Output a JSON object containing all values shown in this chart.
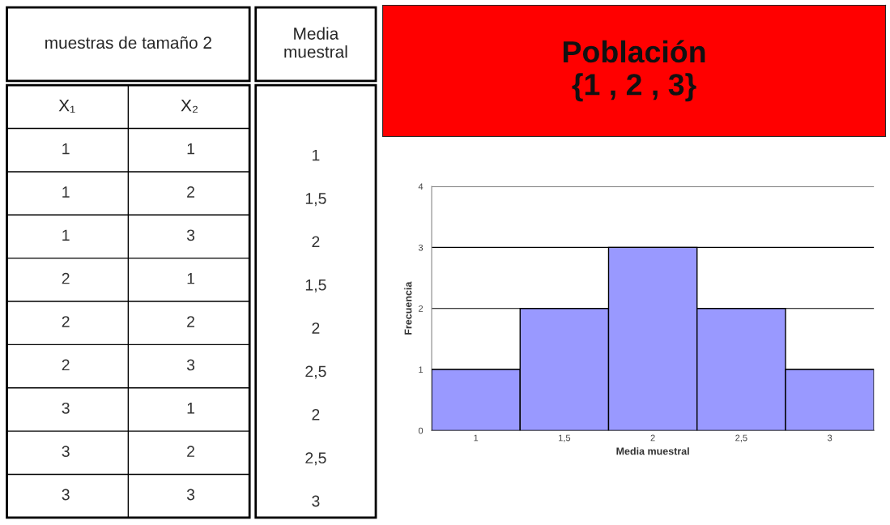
{
  "chart_data": [
    {
      "type": "other",
      "annotations": [
        "muestras de tamaño 2",
        "Media muestral"
      ],
      "categories": [
        "X₁",
        "X₂",
        null
      ],
      "cell_labels": [
        [
          "1",
          "1",
          "1"
        ],
        [
          "1",
          "2",
          "1,5"
        ],
        [
          "1",
          "3",
          "2"
        ],
        [
          "2",
          "1",
          "1,5"
        ],
        [
          "2",
          "2",
          "2"
        ],
        [
          "2",
          "3",
          "2,5"
        ],
        [
          "3",
          "1",
          "2"
        ],
        [
          "3",
          "2",
          "2,5"
        ],
        [
          "3",
          "3",
          "3"
        ]
      ]
    },
    {
      "type": "bar",
      "title": "Población\n{1 , 2 , 3}",
      "xlabel": "Media muestral",
      "ylabel": "Frecuencia",
      "categories": [
        "1",
        "1,5",
        "2",
        "2,5",
        "3"
      ],
      "values": [
        1,
        2,
        3,
        2,
        1
      ],
      "color": "#9999ff",
      "ylim": [
        0,
        4
      ],
      "yticks": [
        0,
        1,
        2,
        3,
        4
      ],
      "grid": "y"
    }
  ]
}
